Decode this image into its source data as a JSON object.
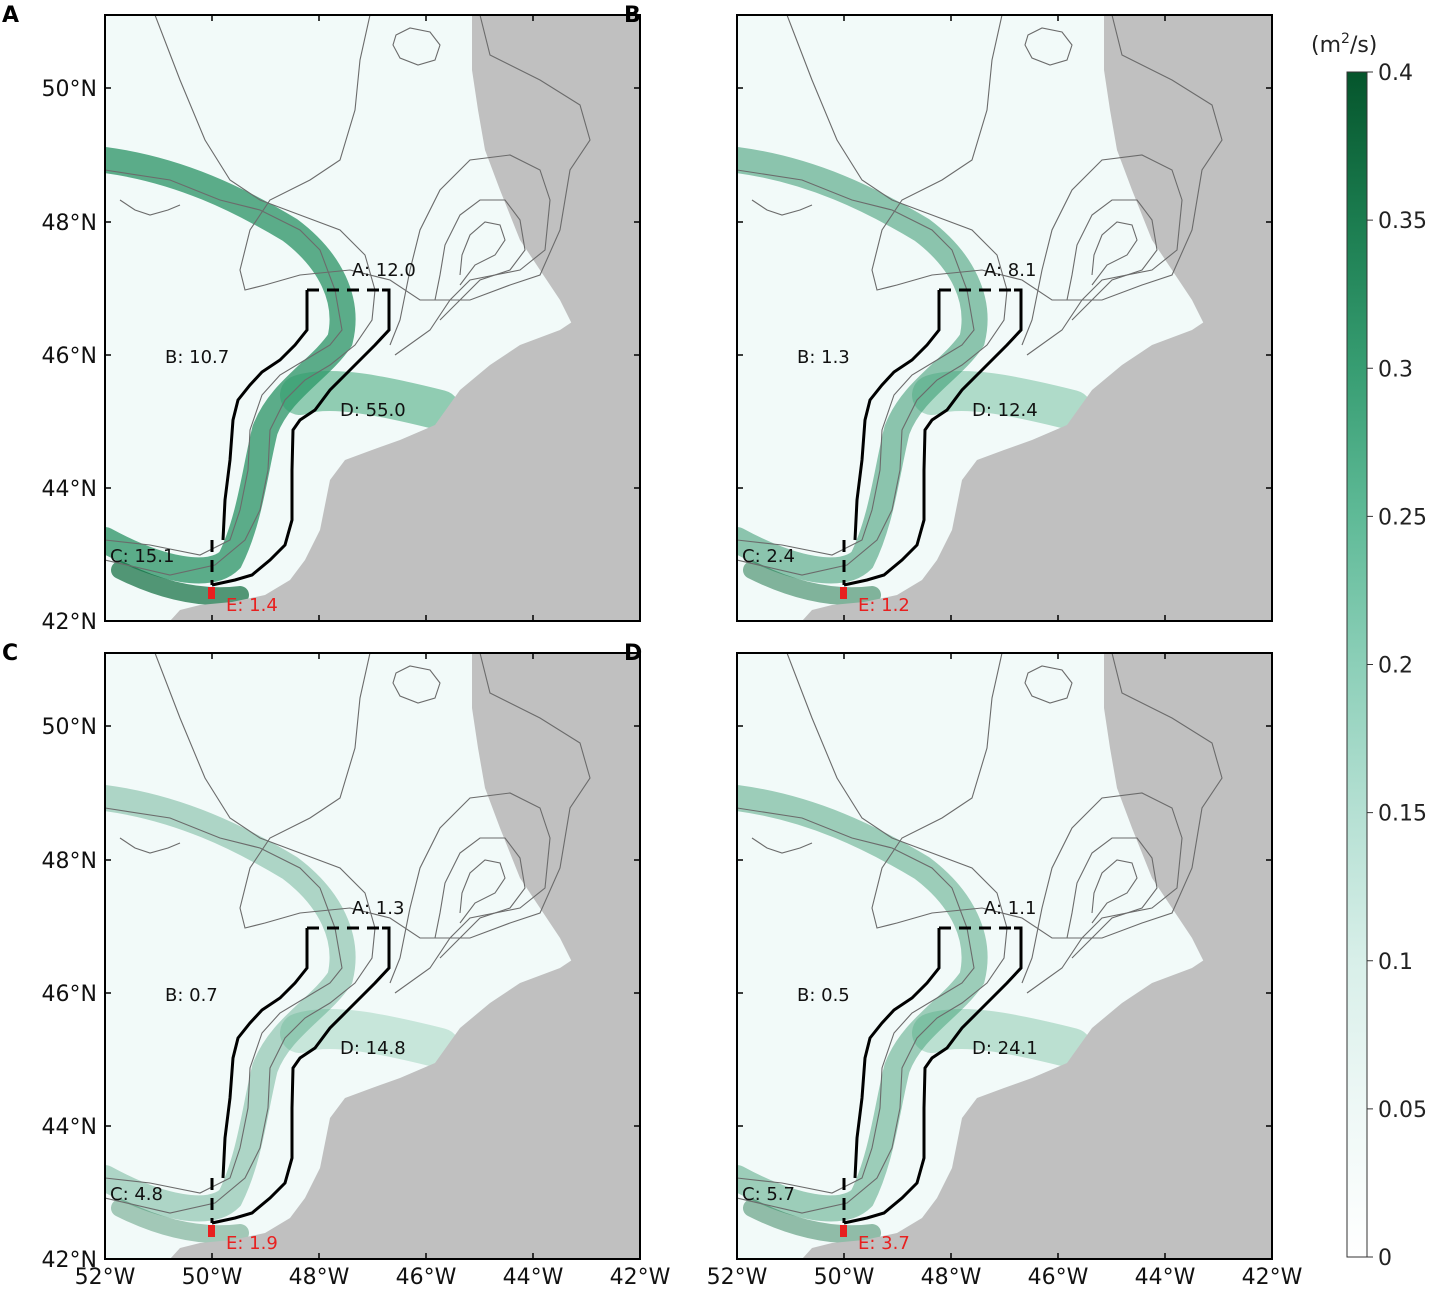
{
  "panels": [
    {
      "letter": "A",
      "regions": [
        {
          "label": "A: 12.0",
          "red": false
        },
        {
          "label": "B: 10.7",
          "red": false
        },
        {
          "label": "C: 15.1",
          "red": false
        },
        {
          "label": "D: 55.0",
          "red": false
        },
        {
          "label": "E: 1.4",
          "red": true
        }
      ],
      "intensity": 1.0
    },
    {
      "letter": "B",
      "regions": [
        {
          "label": "A: 8.1",
          "red": false
        },
        {
          "label": "B: 1.3",
          "red": false
        },
        {
          "label": "C: 2.4",
          "red": false
        },
        {
          "label": "D: 12.4",
          "red": false
        },
        {
          "label": "E: 1.2",
          "red": true
        }
      ],
      "intensity": 0.6
    },
    {
      "letter": "C",
      "regions": [
        {
          "label": "A: 1.3",
          "red": false
        },
        {
          "label": "B: 0.7",
          "red": false
        },
        {
          "label": "C: 4.8",
          "red": false
        },
        {
          "label": "D: 14.8",
          "red": false
        },
        {
          "label": "E: 1.9",
          "red": true
        }
      ],
      "intensity": 0.3
    },
    {
      "letter": "D",
      "regions": [
        {
          "label": "A: 1.1",
          "red": false
        },
        {
          "label": "B: 0.5",
          "red": false
        },
        {
          "label": "C: 5.7",
          "red": false
        },
        {
          "label": "D: 24.1",
          "red": false
        },
        {
          "label": "E: 3.7",
          "red": true
        }
      ],
      "intensity": 0.45
    }
  ],
  "lat_ticks": [
    "42°N",
    "44°N",
    "46°N",
    "48°N",
    "50°N"
  ],
  "lon_ticks": [
    "52°W",
    "50°W",
    "48°W",
    "46°W",
    "44°W",
    "42°W"
  ],
  "colorbar": {
    "unit_prefix": "(m",
    "unit_sup": "2",
    "unit_suffix": "/s)",
    "ticks": [
      "0",
      "0.05",
      "0.1",
      "0.15",
      "0.2",
      "0.25",
      "0.3",
      "0.35",
      "0.4"
    ],
    "min": 0,
    "max": 0.4,
    "colors": [
      "#ffffff",
      "#eef8f6",
      "#d8efe9",
      "#b5e0d3",
      "#8ccfb8",
      "#5fba97",
      "#379d72",
      "#1b7c4f",
      "#05552c"
    ]
  },
  "colors": {
    "land": "#c0c0c0",
    "ocean": "#ffffff",
    "contour": "#6b6b6b",
    "box": "#000000",
    "highlight": "#e8201f"
  }
}
